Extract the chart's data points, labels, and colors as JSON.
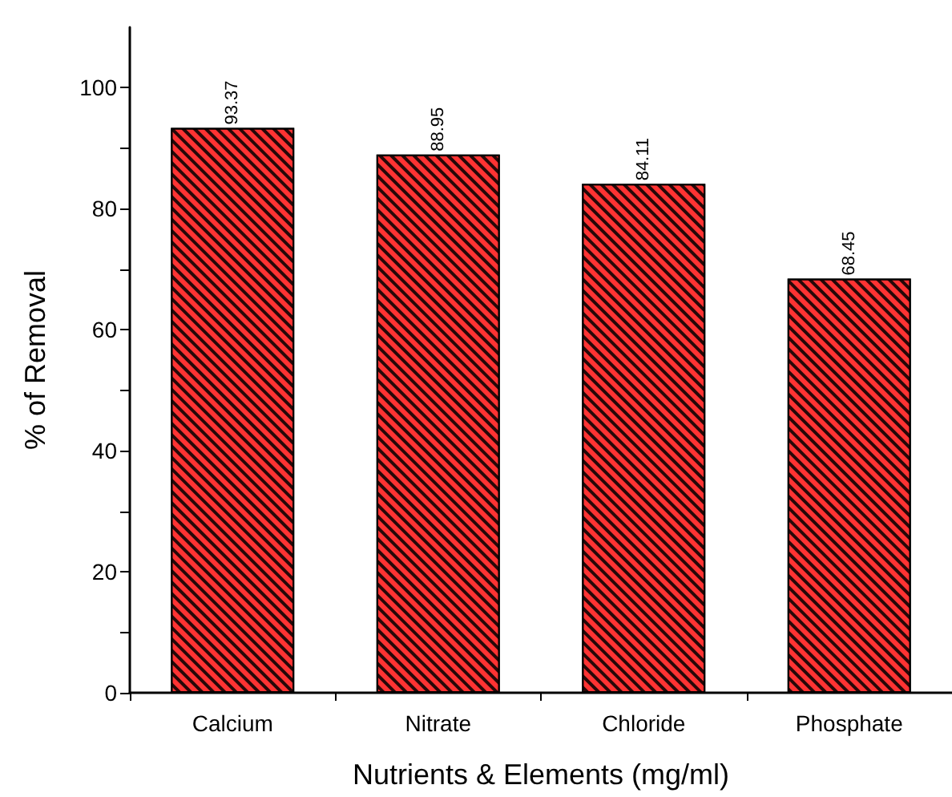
{
  "chart_data": {
    "type": "bar",
    "xlabel": "Nutrients & Elements (mg/ml)",
    "ylabel": "% of Removal",
    "categories": [
      "Calcium",
      "Nitrate",
      "Chloride",
      "Phosphate"
    ],
    "values": [
      93.37,
      88.95,
      84.11,
      68.45
    ],
    "color": "#ff3333",
    "ylim": [
      0,
      110
    ],
    "yticks": [
      0,
      20,
      40,
      60,
      80,
      100
    ],
    "data_labels": true
  }
}
